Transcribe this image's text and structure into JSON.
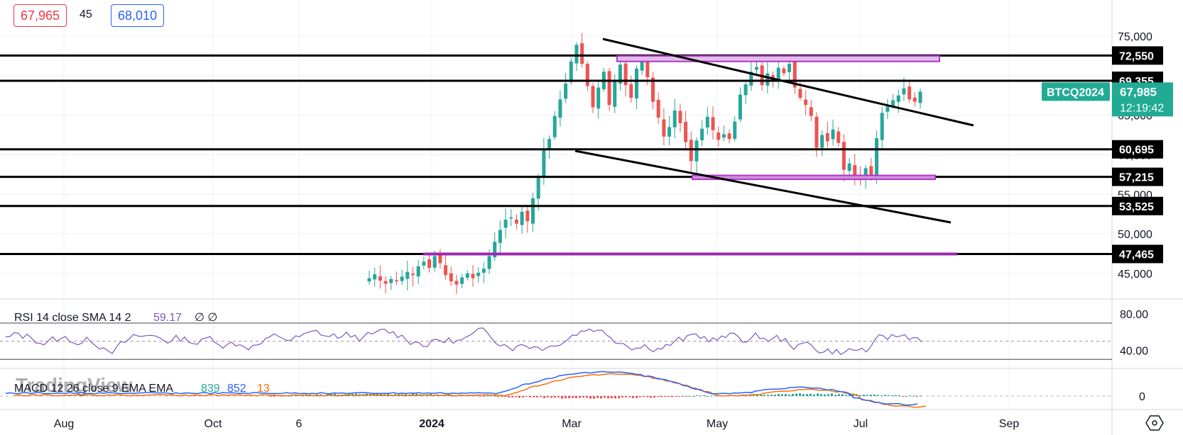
{
  "header": {
    "bid": "67,965",
    "spread": "45",
    "ask": "68,010"
  },
  "symbol": {
    "label": "BTCQ2024",
    "price": "67,985",
    "countdown": "12:19:42",
    "color": "#22ab94"
  },
  "watermark": "TradingView",
  "chart_data": [
    {
      "type": "candlestick",
      "series_name": "BTCQ2024",
      "x_ticks": [
        "Aug",
        "Oct",
        "6",
        "2024",
        "Mar",
        "May",
        "Jul",
        "Sep"
      ],
      "y_ticks": [
        "45,000",
        "50,000",
        "55,000",
        "60,000",
        "65,000",
        "70,000",
        "75,000"
      ],
      "ylim": [
        43000,
        77000
      ],
      "horizontal_levels": [
        "72,550",
        "69,355",
        "60,695",
        "57,215",
        "53,525",
        "47,465"
      ],
      "zones": [
        {
          "name": "resistance-zone",
          "low": 71800,
          "high": 72500,
          "color": "#b034c8"
        },
        {
          "name": "support-zone",
          "low": 56900,
          "high": 57400,
          "color": "#b034c8"
        },
        {
          "name": "support-line",
          "value": 47465,
          "color": "#9c27b0"
        }
      ],
      "trendlines": [
        {
          "name": "upper-channel",
          "from": [
            "Mar",
            74600
          ],
          "to": [
            "Aug",
            64300
          ]
        },
        {
          "name": "lower-channel",
          "from": [
            "Mar",
            60900
          ],
          "to": [
            "Aug",
            51800
          ]
        }
      ],
      "last_price": 67985,
      "up_color": "#26a69a",
      "down_color": "#ef5350",
      "closes": [
        44400,
        44900,
        44100,
        43700,
        44300,
        44000,
        44600,
        45200,
        44800,
        45900,
        46500,
        45700,
        47200,
        46300,
        44800,
        44000,
        43600,
        44500,
        45000,
        44400,
        45100,
        45600,
        47200,
        49000,
        50500,
        51800,
        52100,
        51300,
        52800,
        51600,
        54500,
        57200,
        60800,
        62000,
        64900,
        67000,
        69000,
        71800,
        73900,
        71500,
        68700,
        66000,
        68500,
        70500,
        66300,
        69300,
        71400,
        68800,
        67200,
        70900,
        72000,
        69800,
        66700,
        64700,
        62300,
        63500,
        65600,
        64000,
        61600,
        59200,
        61800,
        63300,
        64800,
        63100,
        61900,
        62600,
        62000,
        64200,
        67600,
        68900,
        70500,
        71100,
        68800,
        70300,
        69400,
        71000,
        70300,
        71500,
        68500,
        67200,
        66300,
        64900,
        60900,
        62500,
        61700,
        63200,
        61500,
        58100,
        58900,
        57200,
        56800,
        58300,
        57400,
        62100,
        65300,
        66100,
        66900,
        67500,
        68400,
        67000,
        66700,
        67985
      ],
      "rsi": {
        "label": "RSI 14 close SMA 14 2",
        "value": "59.17",
        "extra": "∅ ∅",
        "levels": [
          "80.00",
          "40.00"
        ],
        "ylim": [
          20,
          95
        ],
        "upper_band": 70,
        "lower_band": 30,
        "mid": 50,
        "line_color": "#7e57c2"
      },
      "macd": {
        "label": "MACD 12 26 close 9 EMA EMA",
        "values": [
          "839",
          "852",
          "13"
        ],
        "zero_label": "0",
        "macd_color": "#2962ff",
        "signal_color": "#ff6d00"
      }
    }
  ]
}
